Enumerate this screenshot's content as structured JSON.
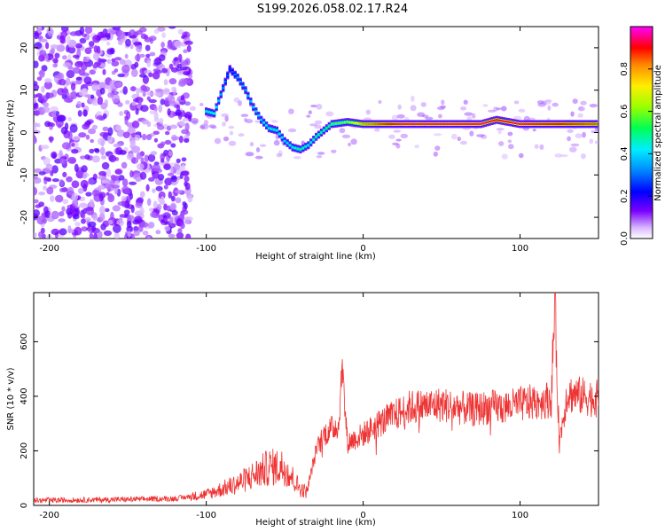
{
  "title": "S199.2026.058.02.17.R24",
  "chart_data": [
    {
      "type": "heatmap",
      "xlabel": "Height of straight line (km)",
      "ylabel": "Frequency (Hz)",
      "xlim": [
        -210,
        150
      ],
      "ylim": [
        -25,
        25
      ],
      "xticks": [
        -200,
        -100,
        0,
        100
      ],
      "yticks": [
        -20,
        -10,
        0,
        10,
        20
      ],
      "colorbar": {
        "label": "Normalized spectral amplitude",
        "range": [
          0,
          1
        ],
        "ticks": [
          0.0,
          0.2,
          0.4,
          0.6,
          0.8
        ],
        "tick_labels": [
          "0.0",
          "0.2",
          "0.4",
          "0.6",
          "0.8"
        ]
      },
      "signal_track": [
        {
          "x": -100,
          "f": 5.0,
          "amp": 0.45
        },
        {
          "x": -95,
          "f": 4.5,
          "amp": 0.45
        },
        {
          "x": -85,
          "f": 15.0,
          "amp": 0.25
        },
        {
          "x": -80,
          "f": 13.0,
          "amp": 0.35
        },
        {
          "x": -75,
          "f": 10.0,
          "amp": 0.35
        },
        {
          "x": -70,
          "f": 6.0,
          "amp": 0.4
        },
        {
          "x": -65,
          "f": 3.0,
          "amp": 0.4
        },
        {
          "x": -60,
          "f": 1.0,
          "amp": 0.45
        },
        {
          "x": -55,
          "f": 0.5,
          "amp": 0.45
        },
        {
          "x": -50,
          "f": -2.0,
          "amp": 0.4
        },
        {
          "x": -45,
          "f": -3.5,
          "amp": 0.45
        },
        {
          "x": -40,
          "f": -4.0,
          "amp": 0.5
        },
        {
          "x": -35,
          "f": -3.0,
          "amp": 0.45
        },
        {
          "x": -30,
          "f": -1.0,
          "amp": 0.5
        },
        {
          "x": -25,
          "f": 0.5,
          "amp": 0.5
        },
        {
          "x": -20,
          "f": 2.0,
          "amp": 0.55
        },
        {
          "x": -10,
          "f": 2.5,
          "amp": 0.6
        },
        {
          "x": 0,
          "f": 2.0,
          "amp": 0.8
        },
        {
          "x": 25,
          "f": 2.0,
          "amp": 0.95
        },
        {
          "x": 50,
          "f": 2.0,
          "amp": 0.95
        },
        {
          "x": 75,
          "f": 2.0,
          "amp": 0.95
        },
        {
          "x": 85,
          "f": 3.0,
          "amp": 0.9
        },
        {
          "x": 100,
          "f": 2.0,
          "amp": 0.95
        },
        {
          "x": 125,
          "f": 2.0,
          "amp": 0.9
        },
        {
          "x": 150,
          "f": 2.0,
          "amp": 0.85
        }
      ]
    },
    {
      "type": "line",
      "xlabel": "Height of straight line (km)",
      "ylabel": "SNR (10 * v/v)",
      "xlim": [
        -210,
        150
      ],
      "ylim": [
        0,
        780
      ],
      "xticks": [
        -200,
        -100,
        0,
        100
      ],
      "yticks": [
        0,
        200,
        400,
        600
      ],
      "color": "#ee3333",
      "series": [
        {
          "name": "SNR",
          "x": [
            -210,
            -180,
            -150,
            -120,
            -100,
            -90,
            -80,
            -70,
            -60,
            -50,
            -40,
            -36,
            -30,
            -25,
            -20,
            -15,
            -14,
            -10,
            0,
            10,
            20,
            30,
            50,
            60,
            70,
            80,
            90,
            100,
            110,
            120,
            122,
            125,
            130,
            140,
            150
          ],
          "y": [
            18,
            20,
            22,
            25,
            40,
            60,
            80,
            110,
            140,
            140,
            60,
            50,
            200,
            260,
            280,
            300,
            540,
            230,
            260,
            300,
            330,
            360,
            370,
            360,
            350,
            360,
            360,
            370,
            380,
            390,
            770,
            230,
            410,
            400,
            390
          ]
        }
      ]
    }
  ]
}
